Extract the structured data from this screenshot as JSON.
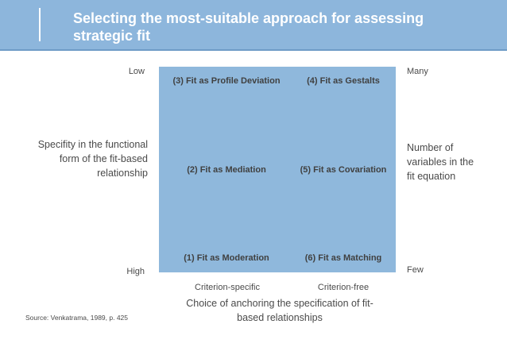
{
  "header": {
    "title": "Selecting the most-suitable approach for assessing strategic fit"
  },
  "quadrants": [
    {
      "label": "(3) Fit as Profile Deviation"
    },
    {
      "label": "(4) Fit as Gestalts"
    },
    {
      "label": "(2) Fit as Mediation"
    },
    {
      "label": "(5) Fit as Covariation"
    },
    {
      "label": "(1) Fit as Moderation"
    },
    {
      "label": "(6) Fit as Matching"
    }
  ],
  "left_axis": {
    "top": "Low",
    "bottom": "High",
    "label_lines": [
      "Specifity in the functional",
      "form of the fit-based",
      "relationship"
    ]
  },
  "right_axis": {
    "top": "Many",
    "bottom": "Few",
    "label_lines": [
      "Number of",
      "variables in the",
      "fit equation"
    ]
  },
  "bottom_axis": {
    "left": "Criterion-specific",
    "right": "Criterion-free",
    "label_lines": [
      "Choice of anchoring the specification of fit-",
      "based relationships"
    ]
  },
  "source": "Source: Venkatrama, 1989, p. 425"
}
